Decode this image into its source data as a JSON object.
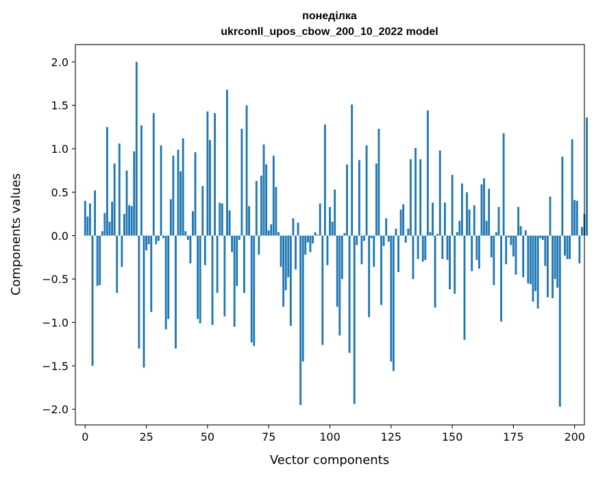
{
  "chart_data": {
    "type": "bar",
    "title": "понеділка",
    "subtitle": "ukrconll_upos_cbow_200_10_2022 model",
    "xlabel": "Vector components",
    "ylabel": "Components values",
    "xlim": [
      -4,
      204
    ],
    "ylim": [
      -2.18,
      2.2
    ],
    "xticks": [
      0,
      25,
      50,
      75,
      100,
      125,
      150,
      175,
      200
    ],
    "xtick_labels": [
      "0",
      "25",
      "50",
      "75",
      "100",
      "125",
      "150",
      "175",
      "200"
    ],
    "yticks": [
      2.0,
      1.5,
      1.0,
      0.5,
      0.0,
      -0.5,
      -1.0,
      -1.5,
      -2.0
    ],
    "ytick_labels": [
      "2.0",
      "1.5",
      "1.0",
      "0.5",
      "0.0",
      "−0.5",
      "−1.0",
      "−1.5",
      "−2.0"
    ],
    "color": "#1f77b4",
    "values": [
      0.4,
      0.22,
      0.37,
      -1.5,
      0.52,
      -0.58,
      -0.57,
      0.05,
      0.26,
      1.25,
      0.16,
      0.39,
      0.83,
      -0.66,
      1.06,
      -0.36,
      0.25,
      0.75,
      0.35,
      0.34,
      0.97,
      2.0,
      -1.3,
      1.27,
      -1.52,
      -0.17,
      -0.1,
      -0.88,
      1.41,
      -0.1,
      -0.06,
      1.04,
      -0.03,
      -1.08,
      -0.96,
      0.42,
      0.92,
      -1.3,
      0.99,
      0.74,
      1.12,
      0.05,
      -0.05,
      -0.32,
      0.28,
      0.96,
      -0.96,
      -1.01,
      0.57,
      -0.34,
      1.43,
      1.1,
      -1.03,
      1.41,
      -0.66,
      0.38,
      0.37,
      -0.93,
      1.68,
      0.29,
      -0.19,
      -1.05,
      -0.58,
      -0.05,
      1.23,
      -0.66,
      1.5,
      0.34,
      -1.23,
      -1.27,
      0.63,
      -0.22,
      0.69,
      1.05,
      0.82,
      0.06,
      0.13,
      0.92,
      0.56,
      0.04,
      -0.36,
      -0.82,
      -0.63,
      -0.48,
      -1.04,
      0.2,
      -0.39,
      0.15,
      -1.95,
      -1.45,
      -0.22,
      -0.08,
      -0.19,
      -0.09,
      0.04,
      0.01,
      0.37,
      -1.26,
      1.28,
      -0.34,
      0.33,
      0.16,
      0.53,
      -0.82,
      -1.15,
      -0.5,
      0.03,
      0.82,
      -1.35,
      1.51,
      -1.94,
      -0.11,
      0.87,
      -0.33,
      -0.06,
      1.04,
      -0.94,
      -0.03,
      -0.36,
      0.83,
      1.23,
      -0.8,
      -0.12,
      0.2,
      -0.07,
      -1.45,
      -1.56,
      0.08,
      -0.42,
      0.3,
      0.36,
      -0.08,
      0.08,
      0.88,
      -0.5,
      1.01,
      -0.27,
      0.88,
      -0.3,
      -0.28,
      1.44,
      0.04,
      0.38,
      -0.83,
      0.02,
      0.98,
      -0.27,
      0.38,
      -0.28,
      -0.62,
      0.7,
      -0.67,
      0.04,
      0.17,
      0.6,
      -1.2,
      0.5,
      0.3,
      -0.41,
      0.35,
      -0.28,
      -0.38,
      0.59,
      0.66,
      0.17,
      0.54,
      -0.25,
      -0.57,
      0.04,
      0.33,
      -0.99,
      1.18,
      -0.33,
      -0.02,
      -0.11,
      -0.24,
      -0.45,
      0.33,
      0.11,
      -0.48,
      0.06,
      -0.55,
      -0.56,
      -0.76,
      -0.64,
      -0.84,
      -0.03,
      -0.05,
      -0.35,
      -0.71,
      0.45,
      -0.72,
      -0.5,
      -0.6,
      -1.97,
      0.91,
      -0.23,
      -0.27,
      -0.27,
      1.11,
      0.41,
      0.4,
      -0.32,
      0.1,
      0.25,
      1.36
    ]
  }
}
